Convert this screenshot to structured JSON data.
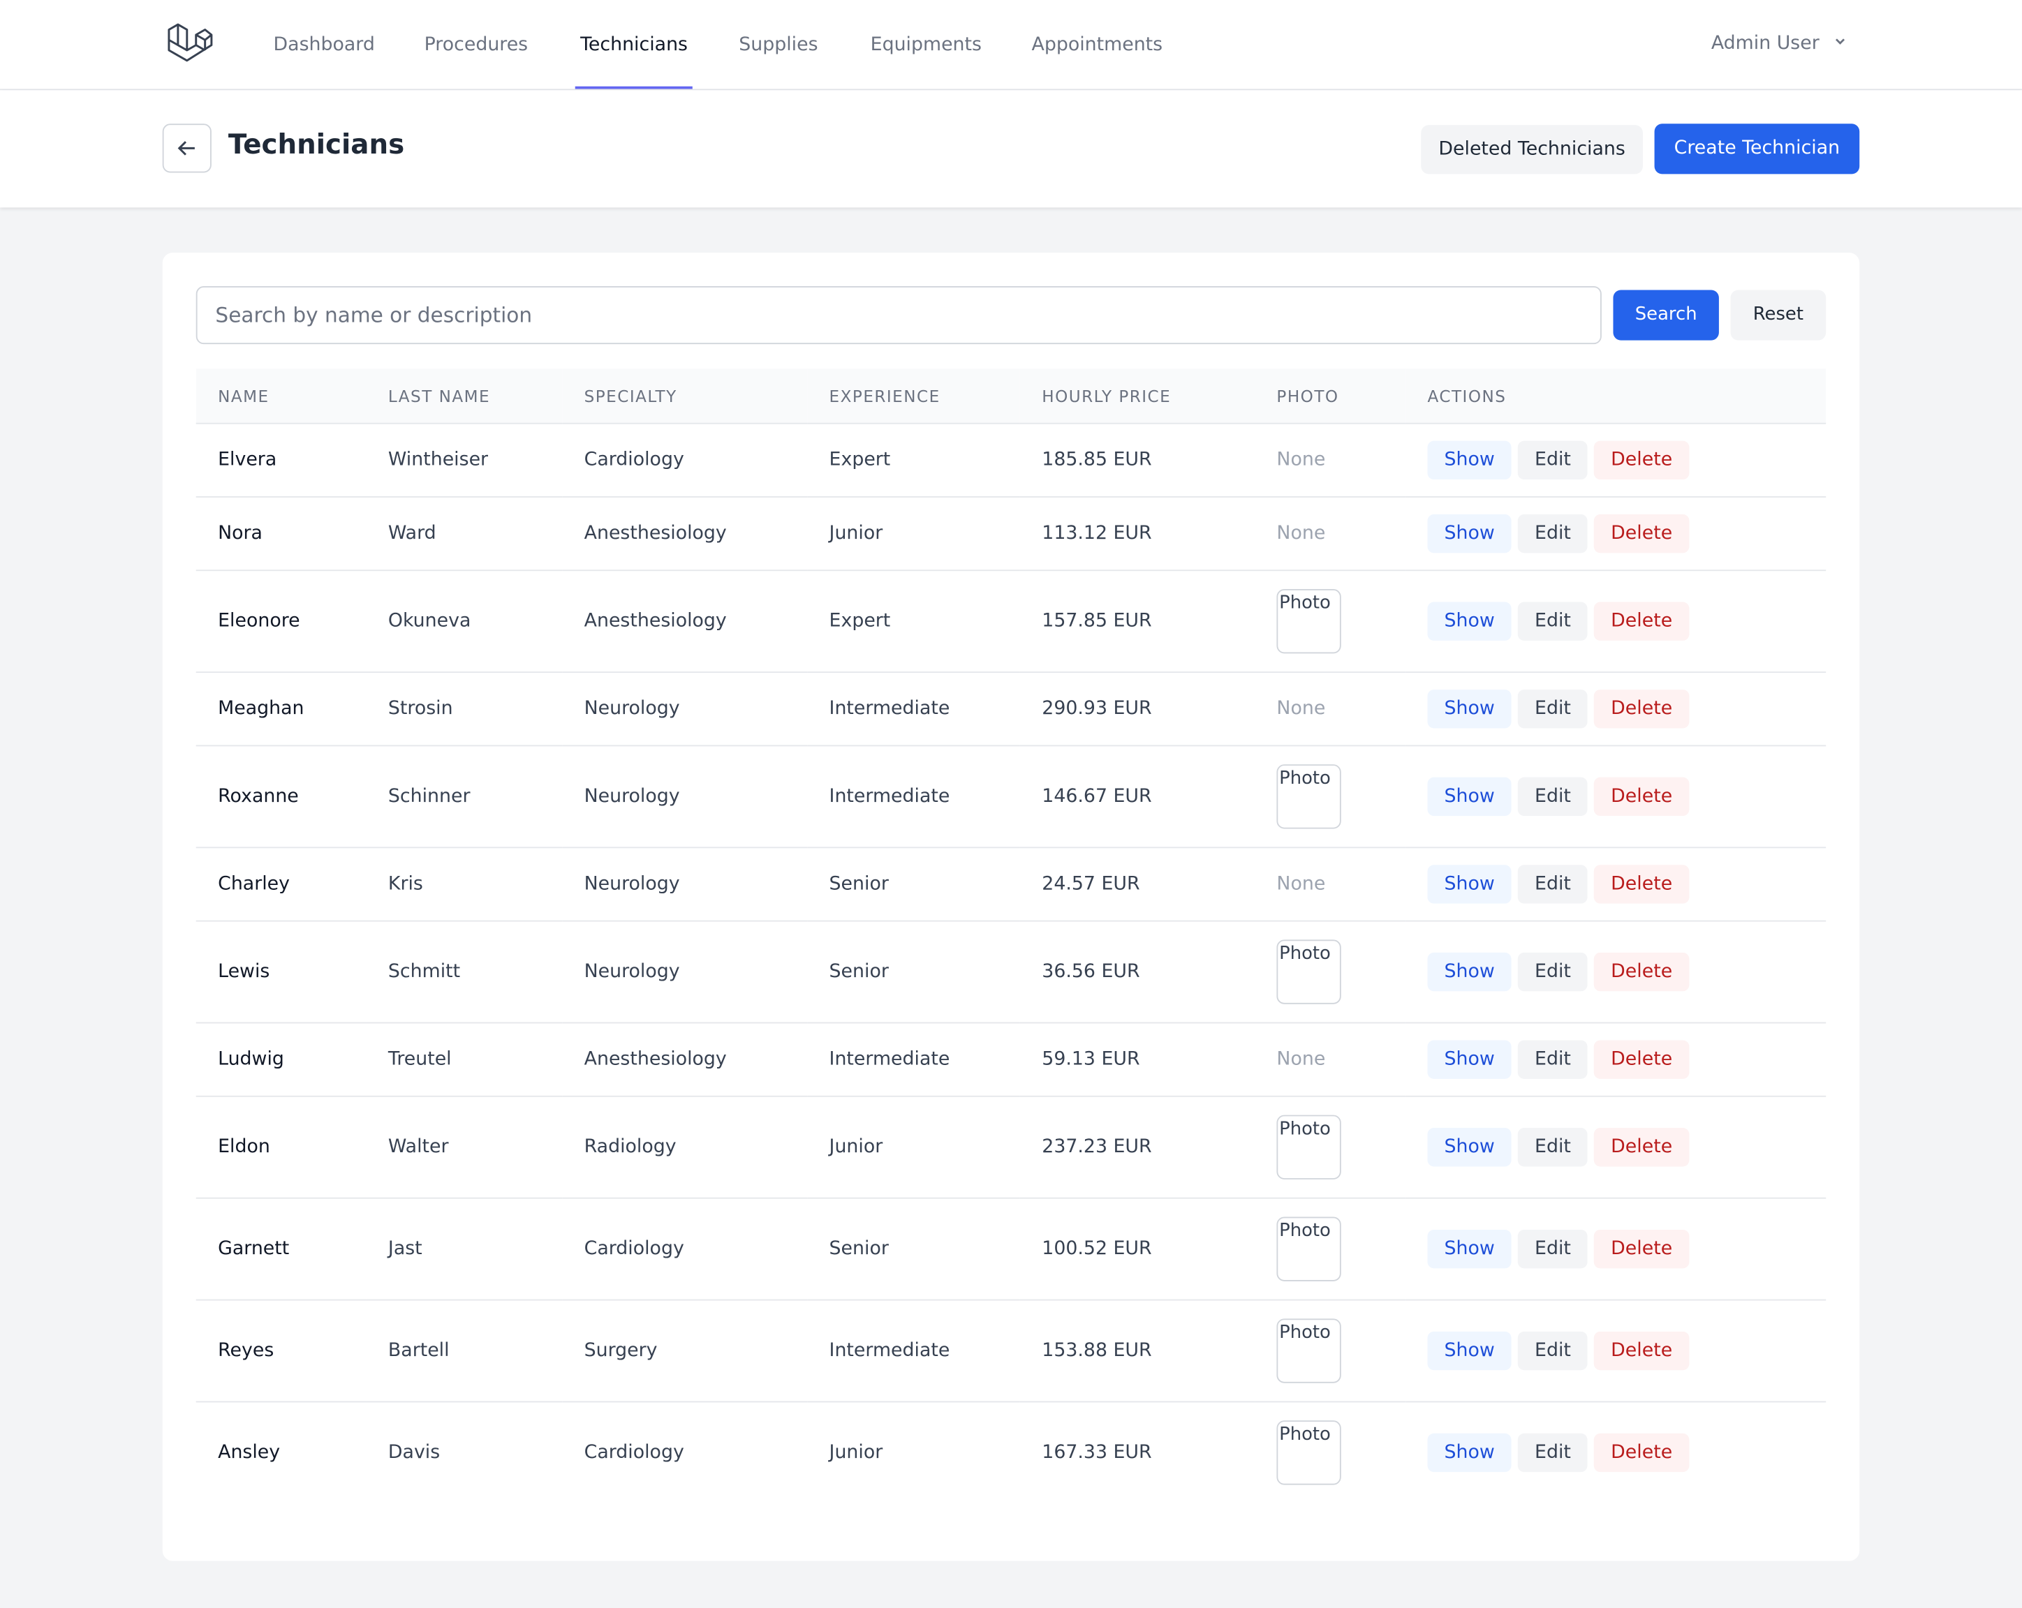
{
  "nav": {
    "items": [
      "Dashboard",
      "Procedures",
      "Technicians",
      "Supplies",
      "Equipments",
      "Appointments"
    ],
    "active": 2,
    "user": "Admin User"
  },
  "header": {
    "title": "Technicians",
    "buttons": [
      "Deleted Technicians",
      "Create Technician"
    ]
  },
  "search": {
    "placeholder": "Search by name or description",
    "buttons": [
      "Search",
      "Reset"
    ]
  },
  "table": {
    "columns": [
      "NAME",
      "LAST NAME",
      "SPECIALTY",
      "EXPERIENCE",
      "HOURLY PRICE",
      "PHOTO",
      "ACTIONS"
    ],
    "actions": [
      "Show",
      "Edit",
      "Delete"
    ],
    "rows": [
      [
        "Elvera",
        "Wintheiser",
        "Cardiology",
        "Expert",
        "185.85 EUR",
        "None"
      ],
      [
        "Nora",
        "Ward",
        "Anesthesiology",
        "Junior",
        "113.12 EUR",
        "None"
      ],
      [
        "Eleonore",
        "Okuneva",
        "Anesthesiology",
        "Expert",
        "157.85 EUR",
        "Photo"
      ],
      [
        "Meaghan",
        "Strosin",
        "Neurology",
        "Intermediate",
        "290.93 EUR",
        "None"
      ],
      [
        "Roxanne",
        "Schinner",
        "Neurology",
        "Intermediate",
        "146.67 EUR",
        "Photo"
      ],
      [
        "Charley",
        "Kris",
        "Neurology",
        "Senior",
        "24.57 EUR",
        "None"
      ],
      [
        "Lewis",
        "Schmitt",
        "Neurology",
        "Senior",
        "36.56 EUR",
        "Photo"
      ],
      [
        "Ludwig",
        "Treutel",
        "Anesthesiology",
        "Intermediate",
        "59.13 EUR",
        "None"
      ],
      [
        "Eldon",
        "Walter",
        "Radiology",
        "Junior",
        "237.23 EUR",
        "Photo"
      ],
      [
        "Garnett",
        "Jast",
        "Cardiology",
        "Senior",
        "100.52 EUR",
        "Photo"
      ],
      [
        "Reyes",
        "Bartell",
        "Surgery",
        "Intermediate",
        "153.88 EUR",
        "Photo"
      ],
      [
        "Ansley",
        "Davis",
        "Cardiology",
        "Junior",
        "167.33 EUR",
        "Photo"
      ]
    ]
  }
}
